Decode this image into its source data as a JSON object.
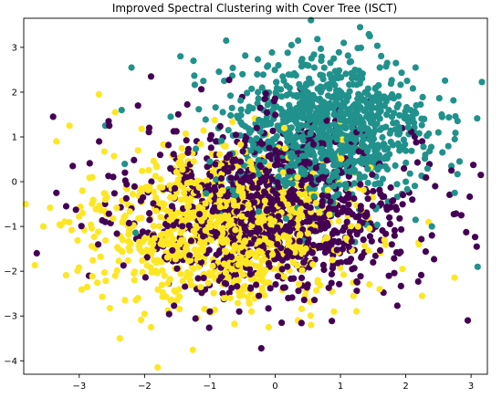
{
  "chart_data": {
    "type": "scatter",
    "title": "Improved Spectral Clustering with Cover Tree (ISCT)",
    "xlabel": "",
    "ylabel": "",
    "xlim": [
      -3.85,
      3.25
    ],
    "ylim": [
      -4.3,
      3.65
    ],
    "xticks": [
      -3,
      -2,
      -1,
      0,
      1,
      2,
      3
    ],
    "yticks": [
      -4,
      -3,
      -2,
      -1,
      0,
      1,
      2,
      3
    ],
    "grid": false,
    "legend": "none",
    "point_count_estimate": 3000,
    "series": [
      {
        "color": "#440154",
        "shown_as": "dark purple points",
        "center": [
          0.0,
          -0.6
        ],
        "spread": [
          1.05,
          0.95
        ],
        "points": [
          [
            -3.65,
            -1.6
          ],
          [
            -3.4,
            1.45
          ],
          [
            -3.35,
            -0.25
          ],
          [
            -3.2,
            -0.55
          ],
          [
            -3.1,
            0.35
          ],
          [
            -2.85,
            -2.1
          ],
          [
            -2.55,
            1.35
          ],
          [
            -2.2,
            -0.6
          ],
          [
            -2.1,
            1.7
          ],
          [
            -1.9,
            2.35
          ],
          [
            -1.8,
            -1.45
          ],
          [
            -1.5,
            -0.9
          ],
          [
            -1.2,
            -2.4
          ],
          [
            -0.9,
            0.6
          ],
          [
            -1.0,
            -2.9
          ],
          [
            -0.6,
            -2.1
          ],
          [
            -0.2,
            0.3
          ],
          [
            -0.4,
            -1.2
          ],
          [
            0.2,
            -2.6
          ],
          [
            0.7,
            -0.5
          ],
          [
            0.4,
            1.2
          ],
          [
            1.1,
            -0.9
          ],
          [
            1.5,
            -1.8
          ],
          [
            1.6,
            0.4
          ],
          [
            2.1,
            -0.4
          ],
          [
            2.4,
            -1.2
          ],
          [
            2.7,
            0.25
          ],
          [
            2.85,
            -0.75
          ],
          [
            2.95,
            -3.1
          ],
          [
            3.15,
            0.15
          ],
          [
            2.45,
            -0.1
          ],
          [
            1.9,
            -1.6
          ],
          [
            -0.55,
            -2.9
          ],
          [
            0.1,
            -3.15
          ],
          [
            0.5,
            -2.3
          ],
          [
            1.3,
            -1.05
          ],
          [
            -1.4,
            0.0
          ],
          [
            -2.6,
            -0.9
          ],
          [
            -2.3,
            0.2
          ],
          [
            2.25,
            0.9
          ]
        ]
      },
      {
        "color": "#21918c",
        "shown_as": "teal points",
        "center": [
          0.8,
          1.1
        ],
        "spread": [
          0.75,
          0.8
        ],
        "points": [
          [
            1.05,
            3.1
          ],
          [
            1.3,
            3.45
          ],
          [
            1.45,
            3.25
          ],
          [
            -0.75,
            3.15
          ],
          [
            0.25,
            3.05
          ],
          [
            -1.45,
            2.8
          ],
          [
            -1.25,
            2.7
          ],
          [
            -2.2,
            2.55
          ],
          [
            -2.35,
            1.6
          ],
          [
            -2.6,
            1.25
          ],
          [
            -1.1,
            2.25
          ],
          [
            0.6,
            2.55
          ],
          [
            1.85,
            2.65
          ],
          [
            2.15,
            2.55
          ],
          [
            2.55,
            1.5
          ],
          [
            2.75,
            0.95
          ],
          [
            2.7,
            0.35
          ],
          [
            2.75,
            -0.25
          ],
          [
            3.1,
            -1.9
          ],
          [
            2.4,
            -1.0
          ],
          [
            0.1,
            1.9
          ],
          [
            0.9,
            1.5
          ],
          [
            1.4,
            0.6
          ],
          [
            -0.3,
            1.3
          ],
          [
            0.4,
            0.2
          ],
          [
            1.9,
            1.15
          ],
          [
            2.3,
            0.6
          ],
          [
            -0.9,
            0.9
          ],
          [
            1.1,
            -0.2
          ],
          [
            0.7,
            2.0
          ],
          [
            2.15,
            -0.85
          ],
          [
            -1.6,
            1.45
          ],
          [
            1.6,
            1.9
          ],
          [
            0.05,
            2.6
          ],
          [
            -0.5,
            2.4
          ],
          [
            1.2,
            2.4
          ],
          [
            2.0,
            0.0
          ],
          [
            2.5,
            1.1
          ],
          [
            0.3,
            1.5
          ],
          [
            -0.2,
            2.1
          ]
        ]
      },
      {
        "color": "#fde725",
        "shown_as": "yellow points",
        "center": [
          -0.8,
          -1.0
        ],
        "spread": [
          0.95,
          0.85
        ],
        "points": [
          [
            -3.55,
            -1.0
          ],
          [
            -3.35,
            0.9
          ],
          [
            -3.15,
            1.25
          ],
          [
            -2.95,
            -0.7
          ],
          [
            -2.7,
            1.95
          ],
          [
            -2.45,
            -2.1
          ],
          [
            -2.35,
            -1.55
          ],
          [
            -2.1,
            -2.6
          ],
          [
            -2.0,
            -2.95
          ],
          [
            -1.9,
            -3.25
          ],
          [
            -1.8,
            -4.15
          ],
          [
            -1.55,
            -1.05
          ],
          [
            -1.45,
            0.45
          ],
          [
            -1.3,
            -2.2
          ],
          [
            -1.1,
            -1.4
          ],
          [
            -0.8,
            -0.2
          ],
          [
            -0.6,
            -1.8
          ],
          [
            -0.4,
            -2.7
          ],
          [
            -0.1,
            -3.25
          ],
          [
            0.35,
            -3.1
          ],
          [
            0.55,
            -3.2
          ],
          [
            0.9,
            -2.9
          ],
          [
            1.2,
            -2.55
          ],
          [
            1.6,
            -2.4
          ],
          [
            1.95,
            -1.95
          ],
          [
            2.2,
            -1.4
          ],
          [
            2.35,
            -0.9
          ],
          [
            2.25,
            -2.55
          ],
          [
            1.0,
            0.6
          ],
          [
            -2.8,
            0.1
          ],
          [
            -2.6,
            -0.4
          ],
          [
            -0.25,
            -0.9
          ],
          [
            0.2,
            -1.5
          ],
          [
            0.8,
            -1.25
          ],
          [
            -1.7,
            -0.5
          ],
          [
            -2.1,
            0.7
          ],
          [
            -0.9,
            0.4
          ],
          [
            1.3,
            0.1
          ],
          [
            -2.45,
            1.55
          ],
          [
            -1.6,
            -2.65
          ]
        ]
      }
    ]
  }
}
